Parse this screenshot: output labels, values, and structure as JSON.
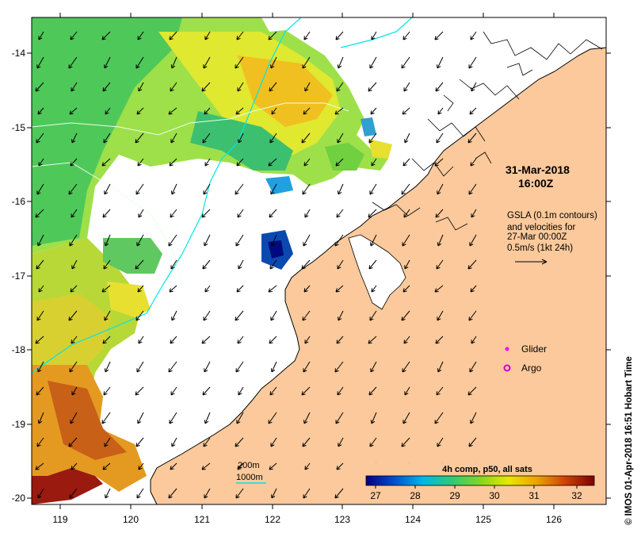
{
  "map": {
    "lat_ticks": [
      "-14",
      "-15",
      "-16",
      "-17",
      "-18",
      "-19",
      "-20"
    ],
    "lon_ticks": [
      "119",
      "120",
      "121",
      "122",
      "123",
      "124",
      "125",
      "126"
    ],
    "datetime": {
      "date": "31-Mar-2018",
      "time": "16:00Z"
    },
    "gsla_info": [
      "GSLA (0.1m contours)",
      "and velocities for",
      "27-Mar 00:00Z",
      "0.5m/s (1kt 24h)"
    ],
    "legend": {
      "glider": "Glider",
      "argo": "Argo",
      "glider_color": "#ff00ff",
      "argo_color": "#cc00cc"
    },
    "isobaths": {
      "shallow": "200m",
      "deep": "1000m",
      "color": "#00e5e5"
    },
    "colorbar": {
      "title": "4h comp, p50, all sats",
      "ticks": [
        "27",
        "28",
        "29",
        "30",
        "31",
        "32"
      ],
      "stops": [
        "#000080",
        "#0050d0",
        "#00b8e8",
        "#30c878",
        "#80d820",
        "#e8e800",
        "#f0a000",
        "#d04000",
        "#800000"
      ]
    },
    "credit": "© IMOS 01-Apr-2018 16:51 Hobart Time",
    "colors": {
      "land": "#fbc99b",
      "sea_nodata": "#ffffff"
    }
  }
}
